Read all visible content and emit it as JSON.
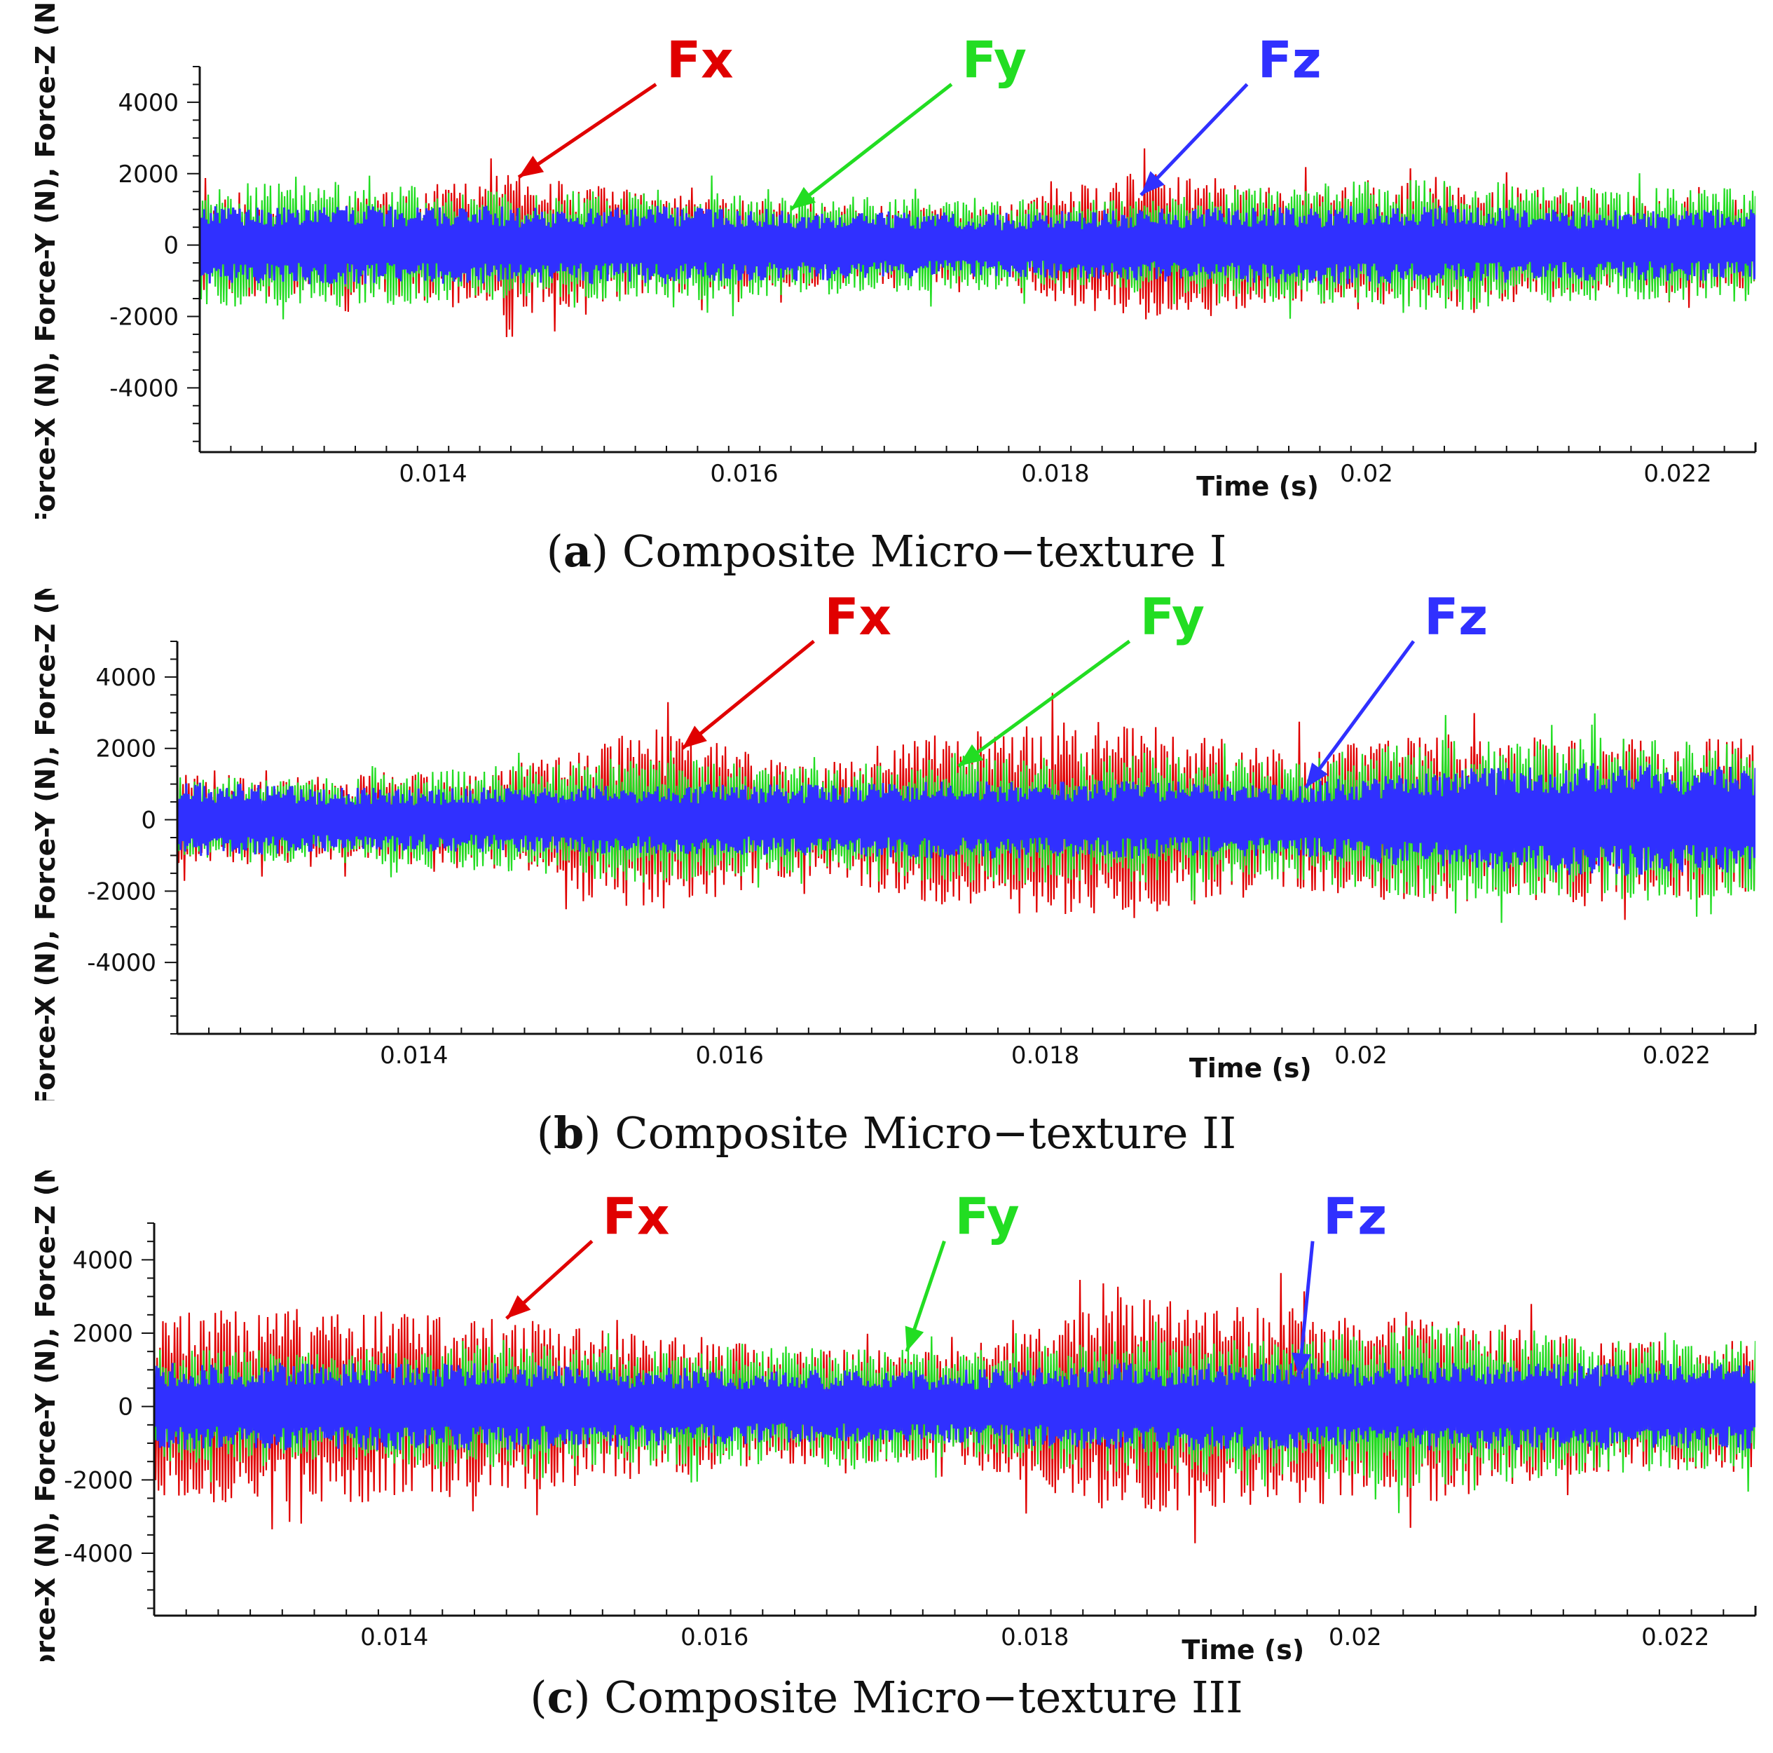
{
  "colors": {
    "fx": "#e00000",
    "fy": "#22dd22",
    "fz": "#3030ff",
    "axis": "#111111"
  },
  "chart_data": [
    {
      "type": "line",
      "caption_letter": "a",
      "caption_text": ") Composite Micro−texture I",
      "caption_open": "(",
      "xlabel": "Time (s)",
      "ylabel": "Force-X (N), Force-Y (N), Force-Z (N)",
      "xlim": [
        0.0125,
        0.0225
      ],
      "ylim": [
        -5800,
        5000
      ],
      "xticks": [
        0.014,
        0.016,
        0.018,
        0.02,
        0.022
      ],
      "xtick_labels": [
        "0.014",
        "0.016",
        "0.018",
        "0.02",
        "0.022"
      ],
      "yticks": [
        -4000,
        -2000,
        0,
        2000,
        4000
      ],
      "ytick_labels": [
        "-4000",
        "-2000",
        "0",
        "2000",
        "4000"
      ],
      "annotations": [
        {
          "label": "Fx",
          "series": "Fx",
          "text_x": 0.0155,
          "text_y": 4700,
          "point_x": 0.01455,
          "point_y": 1900
        },
        {
          "label": "Fy",
          "series": "Fy",
          "text_x": 0.0174,
          "text_y": 4700,
          "point_x": 0.0163,
          "point_y": 1000
        },
        {
          "label": "Fz",
          "series": "Fz",
          "text_x": 0.0193,
          "text_y": 4700,
          "point_x": 0.01855,
          "point_y": 1400
        }
      ],
      "series": [
        {
          "name": "Fx",
          "envelope_x": [
            0.0125,
            0.0135,
            0.0145,
            0.0155,
            0.0165,
            0.0175,
            0.0185,
            0.0195,
            0.0205,
            0.0215,
            0.0225
          ],
          "envelope_amp": [
            1500,
            1400,
            2000,
            1400,
            1200,
            1000,
            2200,
            1600,
            1800,
            1400,
            1300
          ]
        },
        {
          "name": "Fy",
          "envelope_x": [
            0.0125,
            0.0135,
            0.0145,
            0.0155,
            0.0165,
            0.0175,
            0.0185,
            0.0195,
            0.0205,
            0.0215,
            0.0225
          ],
          "envelope_amp": [
            1700,
            1800,
            1500,
            1600,
            1400,
            1300,
            1300,
            1700,
            1900,
            1600,
            1600
          ]
        },
        {
          "name": "Fz",
          "envelope_x": [
            0.0125,
            0.0135,
            0.0145,
            0.0155,
            0.0165,
            0.0175,
            0.0185,
            0.0195,
            0.0205,
            0.0215,
            0.0225
          ],
          "envelope_amp": [
            1100,
            1100,
            1100,
            1100,
            1000,
            900,
            1000,
            1100,
            1100,
            1000,
            1000
          ]
        }
      ]
    },
    {
      "type": "line",
      "caption_letter": "b",
      "caption_text": ") Composite Micro−texture II",
      "caption_open": "(",
      "xlabel": "Time (s)",
      "ylabel": "Force-X (N), Force-Y (N), Force-Z (N)",
      "xlim": [
        0.0125,
        0.0225
      ],
      "ylim": [
        -6000,
        5000
      ],
      "xticks": [
        0.014,
        0.016,
        0.018,
        0.02,
        0.022
      ],
      "xtick_labels": [
        "0.014",
        "0.016",
        "0.018",
        "0.02",
        "0.022"
      ],
      "yticks": [
        -4000,
        -2000,
        0,
        2000,
        4000
      ],
      "ytick_labels": [
        "-4000",
        "-2000",
        "0",
        "2000",
        "4000"
      ],
      "annotations": [
        {
          "label": "Fx",
          "series": "Fx",
          "text_x": 0.0166,
          "text_y": 5200,
          "point_x": 0.0157,
          "point_y": 2000
        },
        {
          "label": "Fy",
          "series": "Fy",
          "text_x": 0.0186,
          "text_y": 5200,
          "point_x": 0.01745,
          "point_y": 1500
        },
        {
          "label": "Fz",
          "series": "Fz",
          "text_x": 0.0204,
          "text_y": 5200,
          "point_x": 0.01965,
          "point_y": 900
        }
      ],
      "series": [
        {
          "name": "Fx",
          "envelope_x": [
            0.0125,
            0.0135,
            0.0145,
            0.0155,
            0.0165,
            0.0175,
            0.0185,
            0.0195,
            0.0205,
            0.0215,
            0.0225
          ],
          "envelope_amp": [
            1300,
            1200,
            1400,
            2600,
            1600,
            2600,
            2800,
            2000,
            2400,
            2300,
            2300
          ]
        },
        {
          "name": "Fy",
          "envelope_x": [
            0.0125,
            0.0135,
            0.0145,
            0.0155,
            0.0165,
            0.0175,
            0.0185,
            0.0195,
            0.0205,
            0.0215,
            0.0225
          ],
          "envelope_amp": [
            1200,
            1200,
            1500,
            1800,
            1500,
            1800,
            1800,
            1700,
            2300,
            2300,
            2200
          ]
        },
        {
          "name": "Fz",
          "envelope_x": [
            0.0125,
            0.0135,
            0.0145,
            0.0155,
            0.0165,
            0.0175,
            0.0185,
            0.0195,
            0.0205,
            0.0215,
            0.0225
          ],
          "envelope_amp": [
            1100,
            900,
            900,
            1000,
            1000,
            1100,
            1100,
            1000,
            1400,
            1600,
            1500
          ]
        }
      ]
    },
    {
      "type": "line",
      "caption_letter": "c",
      "caption_text": ") Composite Micro−texture III",
      "caption_open": "(",
      "xlabel": "Time (s)",
      "ylabel": "Force-X (N), Force-Y (N), Force-Z (N)",
      "xlim": [
        0.0125,
        0.0225
      ],
      "ylim": [
        -5700,
        5000
      ],
      "xticks": [
        0.014,
        0.016,
        0.018,
        0.02,
        0.022
      ],
      "xtick_labels": [
        "0.014",
        "0.016",
        "0.018",
        "0.02",
        "0.022"
      ],
      "yticks": [
        -4000,
        -2000,
        0,
        2000,
        4000
      ],
      "ytick_labels": [
        "-4000",
        "-2000",
        "0",
        "2000",
        "4000"
      ],
      "annotations": [
        {
          "label": "Fx",
          "series": "Fx",
          "text_x": 0.0153,
          "text_y": 4700,
          "point_x": 0.0147,
          "point_y": 2400
        },
        {
          "label": "Fy",
          "series": "Fy",
          "text_x": 0.0175,
          "text_y": 4700,
          "point_x": 0.0172,
          "point_y": 1500
        },
        {
          "label": "Fz",
          "series": "Fz",
          "text_x": 0.0198,
          "text_y": 4700,
          "point_x": 0.01965,
          "point_y": 800
        }
      ],
      "series": [
        {
          "name": "Fx",
          "envelope_x": [
            0.0125,
            0.0135,
            0.0145,
            0.0155,
            0.0165,
            0.0175,
            0.0185,
            0.0195,
            0.0205,
            0.0215,
            0.0225
          ],
          "envelope_amp": [
            2600,
            2700,
            2500,
            2000,
            1600,
            1500,
            3000,
            2700,
            2600,
            1800,
            1800
          ]
        },
        {
          "name": "Fy",
          "envelope_x": [
            0.0125,
            0.0135,
            0.0145,
            0.0155,
            0.0165,
            0.0175,
            0.0185,
            0.0195,
            0.0205,
            0.0215,
            0.0225
          ],
          "envelope_amp": [
            1600,
            1500,
            1700,
            1600,
            1700,
            1500,
            1800,
            1900,
            2300,
            1800,
            1800
          ]
        },
        {
          "name": "Fz",
          "envelope_x": [
            0.0125,
            0.0135,
            0.0145,
            0.0155,
            0.0165,
            0.0175,
            0.0185,
            0.0195,
            0.0205,
            0.0215,
            0.0225
          ],
          "envelope_amp": [
            1200,
            1200,
            1200,
            1100,
            1000,
            1000,
            1200,
            1200,
            1200,
            1200,
            1200
          ]
        }
      ]
    }
  ]
}
